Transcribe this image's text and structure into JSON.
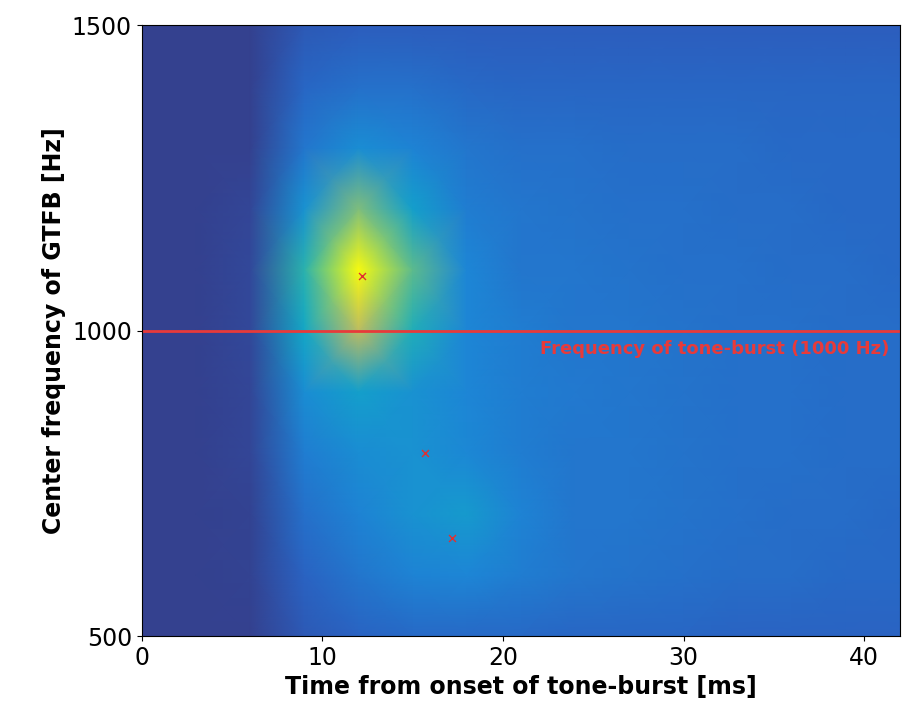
{
  "chart_data": {
    "type": "heatmap",
    "x_label": "Time from onset of tone-burst [ms]",
    "y_label": "Center frequency of GTFB [Hz]",
    "xlim": [
      0,
      42
    ],
    "ylim": [
      500,
      1500
    ],
    "xticks": [
      0,
      10,
      20,
      30,
      40
    ],
    "yticks": [
      500,
      1000,
      1500
    ],
    "x": [
      0,
      3,
      6,
      9,
      12,
      15,
      18,
      21,
      24,
      27,
      30,
      33,
      36,
      39,
      42
    ],
    "y": [
      500,
      600,
      700,
      800,
      900,
      1000,
      1100,
      1200,
      1300,
      1400,
      1500
    ],
    "cells": [
      [
        0,
        0,
        0,
        0.1,
        0.14,
        0.16,
        0.16,
        0.16,
        0.15,
        0.15,
        0.15,
        0.14,
        0.14,
        0.14,
        0.14
      ],
      [
        0,
        0,
        0.01,
        0.14,
        0.2,
        0.24,
        0.25,
        0.22,
        0.2,
        0.19,
        0.18,
        0.17,
        0.17,
        0.16,
        0.16
      ],
      [
        0,
        0,
        0.01,
        0.18,
        0.24,
        0.3,
        0.33,
        0.24,
        0.2,
        0.2,
        0.19,
        0.18,
        0.17,
        0.17,
        0.16
      ],
      [
        0,
        0,
        0.02,
        0.22,
        0.28,
        0.3,
        0.26,
        0.22,
        0.2,
        0.2,
        0.19,
        0.18,
        0.18,
        0.17,
        0.17
      ],
      [
        0,
        0,
        0.02,
        0.28,
        0.35,
        0.3,
        0.25,
        0.22,
        0.21,
        0.2,
        0.19,
        0.18,
        0.18,
        0.17,
        0.17
      ],
      [
        0,
        0,
        0.03,
        0.38,
        0.7,
        0.42,
        0.25,
        0.22,
        0.2,
        0.2,
        0.19,
        0.18,
        0.18,
        0.17,
        0.17
      ],
      [
        0,
        0,
        0.03,
        0.45,
        1.0,
        0.55,
        0.25,
        0.2,
        0.2,
        0.19,
        0.18,
        0.18,
        0.17,
        0.17,
        0.16
      ],
      [
        0,
        0,
        0.02,
        0.3,
        0.6,
        0.35,
        0.22,
        0.2,
        0.19,
        0.18,
        0.18,
        0.17,
        0.17,
        0.16,
        0.16
      ],
      [
        0,
        0,
        0,
        0.2,
        0.28,
        0.24,
        0.2,
        0.18,
        0.18,
        0.17,
        0.17,
        0.17,
        0.16,
        0.16,
        0.16
      ],
      [
        0,
        0,
        0,
        0.15,
        0.18,
        0.18,
        0.16,
        0.15,
        0.15,
        0.15,
        0.15,
        0.15,
        0.15,
        0.15,
        0.15
      ],
      [
        0,
        0,
        0,
        0.1,
        0.12,
        0.12,
        0.12,
        0.12,
        0.12,
        0.12,
        0.12,
        0.12,
        0.12,
        0.12,
        0.12
      ]
    ],
    "points": {
      "x": [
        12.2,
        15.7,
        17.2
      ],
      "y": [
        1090,
        800,
        660
      ],
      "color": "#e03030",
      "marker": "x"
    },
    "reference_line": {
      "y": 1000,
      "label": "Frequency of tone-burst (1000 Hz)",
      "color": "#e83a3a"
    }
  }
}
